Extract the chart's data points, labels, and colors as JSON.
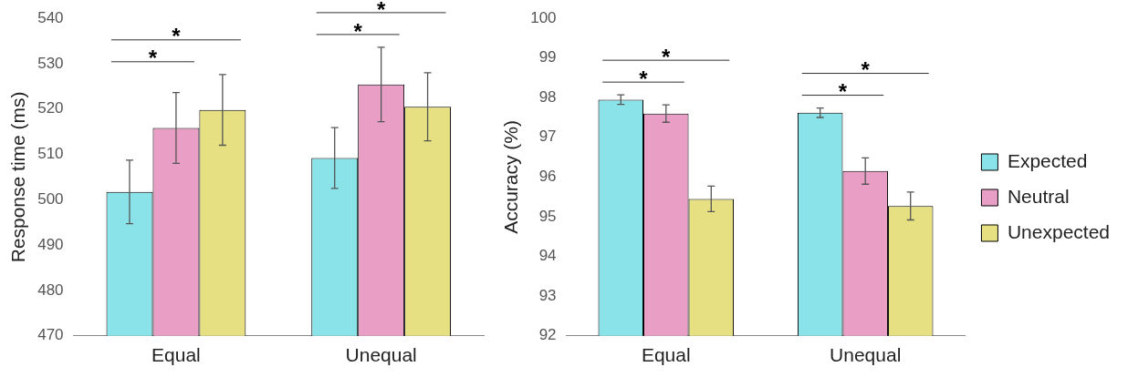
{
  "chart_data": [
    {
      "type": "bar",
      "ylabel": "Response time (ms)",
      "categories": [
        "Equal",
        "Unequal"
      ],
      "series": [
        {
          "color": "#8ae3e8",
          "values": [
            501.7,
            509.2
          ],
          "errors": [
            7,
            6.7
          ]
        },
        {
          "color": "#e99fc5",
          "values": [
            515.8,
            525.4
          ],
          "errors": [
            7.8,
            8.2
          ]
        },
        {
          "color": "#e6e083",
          "values": [
            519.8,
            520.5
          ],
          "errors": [
            7.8,
            7.5
          ]
        }
      ],
      "ylim": [
        470,
        540
      ],
      "yticks": [
        470,
        480,
        490,
        500,
        510,
        520,
        530,
        540
      ],
      "grid": false,
      "legend": false,
      "annotations": [
        "*",
        "*",
        "*",
        "*"
      ]
    },
    {
      "type": "bar",
      "ylabel": "Accuracy (%)",
      "categories": [
        "Equal",
        "Unequal"
      ],
      "series": [
        {
          "name": "Expected",
          "color": "#8ae3e8",
          "values": [
            97.95,
            97.62
          ],
          "errors": [
            0.12,
            0.12
          ]
        },
        {
          "name": "Neutral",
          "color": "#e99fc5",
          "values": [
            97.6,
            96.15
          ],
          "errors": [
            0.22,
            0.33
          ]
        },
        {
          "name": "Unexpected",
          "color": "#e6e083",
          "values": [
            95.45,
            95.27
          ],
          "errors": [
            0.32,
            0.35
          ]
        }
      ],
      "ylim": [
        92,
        100
      ],
      "yticks": [
        92,
        93,
        94,
        95,
        96,
        97,
        98,
        99,
        100
      ],
      "grid": false,
      "legend": "right",
      "annotations": [
        "*",
        "*",
        "*",
        "*"
      ]
    }
  ]
}
